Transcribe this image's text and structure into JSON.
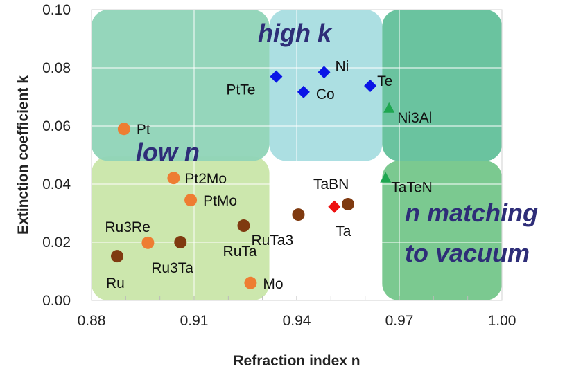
{
  "chart_data": {
    "type": "scatter",
    "xlabel": "Refraction index n",
    "ylabel": "Extinction coefficient k",
    "xlim": [
      0.88,
      1.0
    ],
    "ylim": [
      0.0,
      0.1
    ],
    "xticks": [
      "0.88",
      "0.91",
      "0.94",
      "0.97",
      "1.00"
    ],
    "yticks": [
      "0.00",
      "0.02",
      "0.04",
      "0.06",
      "0.08",
      "0.10"
    ],
    "grid": true,
    "regions": [
      {
        "label": "",
        "x": [
          0.88,
          0.932
        ],
        "y": [
          0.0,
          0.0495
        ],
        "color": "#c9e6a9"
      },
      {
        "label": "low n",
        "x": [
          0.88,
          0.932
        ],
        "y": [
          0.048,
          0.1
        ],
        "color": "#8fd4b7"
      },
      {
        "label": "high k",
        "x": [
          0.932,
          0.965
        ],
        "y": [
          0.048,
          0.1
        ],
        "color": "#a8dde0"
      },
      {
        "label": "n matching\nto vacuum",
        "x": [
          0.965,
          1.0
        ],
        "y": [
          0.0,
          0.048
        ],
        "color": "#74c68a"
      },
      {
        "label": "",
        "x": [
          0.965,
          1.0
        ],
        "y": [
          0.048,
          0.1
        ],
        "color": "#62c09a"
      }
    ],
    "region_label_color": "#2e2d78",
    "points": [
      {
        "name": "PtTe",
        "x": 0.934,
        "y": 0.077,
        "marker": "diamond",
        "color": "#0a14e6"
      },
      {
        "name": "Ni",
        "x": 0.948,
        "y": 0.0785,
        "marker": "diamond",
        "color": "#0a14e6"
      },
      {
        "name": "Co",
        "x": 0.942,
        "y": 0.0717,
        "marker": "diamond",
        "color": "#0a14e6"
      },
      {
        "name": "Te",
        "x": 0.9615,
        "y": 0.0738,
        "marker": "diamond",
        "color": "#0a14e6"
      },
      {
        "name": "Ni3Al",
        "x": 0.967,
        "y": 0.066,
        "marker": "triangle",
        "color": "#1ea650"
      },
      {
        "name": "TaTeN",
        "x": 0.966,
        "y": 0.042,
        "marker": "triangle",
        "color": "#1ea650"
      },
      {
        "name": "Ta",
        "x": 0.951,
        "y": 0.0322,
        "marker": "diamond",
        "color": "#ee1111"
      },
      {
        "name": "TaBN",
        "x": 0.955,
        "y": 0.0331,
        "marker": "circle",
        "color": "#7f3a10"
      },
      {
        "name": "RuTa3",
        "x": 0.9405,
        "y": 0.0295,
        "marker": "circle",
        "color": "#7f3a10"
      },
      {
        "name": "RuTa",
        "x": 0.9245,
        "y": 0.0257,
        "marker": "circle",
        "color": "#7f3a10"
      },
      {
        "name": "Ru3Ta",
        "x": 0.906,
        "y": 0.02,
        "marker": "circle",
        "color": "#7f3a10"
      },
      {
        "name": "Ru",
        "x": 0.8875,
        "y": 0.0152,
        "marker": "circle",
        "color": "#7f3a10"
      },
      {
        "name": "Ru3Re",
        "x": 0.8965,
        "y": 0.0198,
        "marker": "circle",
        "color": "#ee7d32"
      },
      {
        "name": "Mo",
        "x": 0.9265,
        "y": 0.006,
        "marker": "circle",
        "color": "#ee7d32"
      },
      {
        "name": "Pt",
        "x": 0.8895,
        "y": 0.059,
        "marker": "circle",
        "color": "#ee7d32"
      },
      {
        "name": "Pt2Mo",
        "x": 0.904,
        "y": 0.0421,
        "marker": "circle",
        "color": "#ee7d32"
      },
      {
        "name": "PtMo",
        "x": 0.909,
        "y": 0.0345,
        "marker": "circle",
        "color": "#ee7d32"
      }
    ]
  }
}
